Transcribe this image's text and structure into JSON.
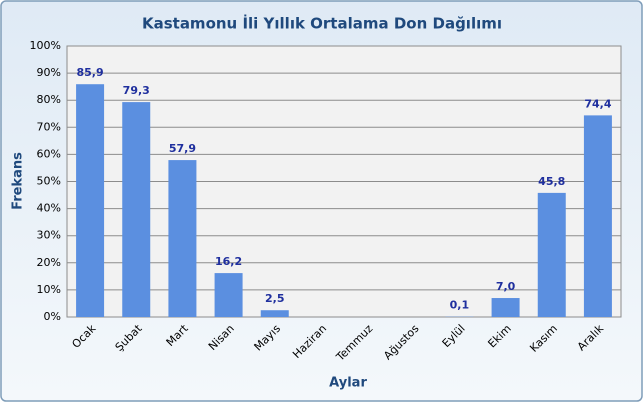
{
  "chart_data": {
    "type": "bar",
    "title": "Kastamonu İli Yıllık Ortalama Don Dağılımı",
    "y_label": "Frekans",
    "x_label": "Aylar",
    "categories": [
      "Ocak",
      "Şubat",
      "Mart",
      "Nisan",
      "Mayıs",
      "Haziran",
      "Temmuz",
      "Ağustos",
      "Eylül",
      "Ekim",
      "Kasım",
      "Aralık"
    ],
    "values": [
      85.9,
      79.3,
      57.9,
      16.2,
      2.5,
      null,
      null,
      null,
      0.1,
      7.0,
      45.8,
      74.4
    ],
    "value_labels": [
      "85,9",
      "79,3",
      "57,9",
      "16,2",
      "2,5",
      null,
      null,
      null,
      "0,1",
      "7,0",
      "45,8",
      "74,4"
    ],
    "color": "#5b8fe0",
    "ylim": [
      0,
      100
    ],
    "yticks": [
      {
        "value": 0,
        "label": "0%"
      },
      {
        "value": 10,
        "label": "10%"
      },
      {
        "value": 20,
        "label": "20%"
      },
      {
        "value": 30,
        "label": "30%"
      },
      {
        "value": 40,
        "label": "40%"
      },
      {
        "value": 50,
        "label": "50%"
      },
      {
        "value": 60,
        "label": "60%"
      },
      {
        "value": 70,
        "label": "70%"
      },
      {
        "value": 80,
        "label": "80%"
      },
      {
        "value": 90,
        "label": "90%"
      },
      {
        "value": 100,
        "label": "100%"
      }
    ],
    "grid": true
  }
}
